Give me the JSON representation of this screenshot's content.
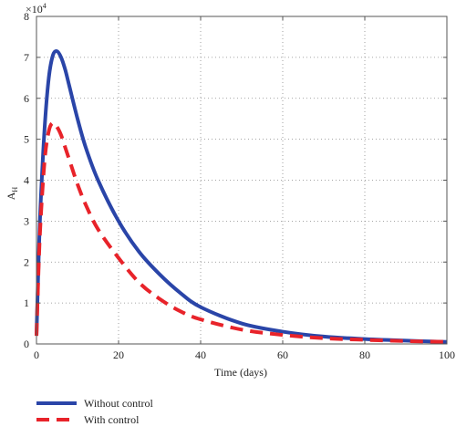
{
  "chart_data": {
    "type": "line",
    "title": "",
    "xlabel": "Time (days)",
    "ylabel": "A",
    "ylabel_subscript": "H",
    "y_scale_label": "×10",
    "y_scale_exponent": "4",
    "xlim": [
      0,
      100
    ],
    "ylim": [
      0,
      8
    ],
    "xticks": [
      0,
      20,
      40,
      60,
      80,
      100
    ],
    "yticks": [
      0,
      1,
      2,
      3,
      4,
      5,
      6,
      7,
      8
    ],
    "grid": true,
    "legend_position": "below-left",
    "series": [
      {
        "name": "Without control",
        "color": "#2a45a8",
        "style": "solid",
        "x": [
          0,
          0.5,
          1,
          2,
          3,
          4,
          5,
          6,
          7,
          8,
          10,
          12,
          15,
          20,
          25,
          30,
          35,
          40,
          50,
          60,
          70,
          80,
          90,
          100
        ],
        "y": [
          0.2,
          2.0,
          3.4,
          5.3,
          6.5,
          7.05,
          7.15,
          7.0,
          6.7,
          6.3,
          5.5,
          4.8,
          4.0,
          3.0,
          2.25,
          1.7,
          1.25,
          0.9,
          0.5,
          0.3,
          0.18,
          0.12,
          0.08,
          0.05
        ]
      },
      {
        "name": "With control",
        "color": "#e8232a",
        "style": "dashed",
        "x": [
          0,
          0.5,
          1,
          2,
          3,
          4,
          5,
          6,
          7,
          8,
          10,
          12,
          15,
          20,
          25,
          30,
          35,
          40,
          50,
          60,
          70,
          80,
          90,
          100
        ],
        "y": [
          0.2,
          1.8,
          3.0,
          4.5,
          5.2,
          5.4,
          5.3,
          5.1,
          4.8,
          4.5,
          3.9,
          3.4,
          2.8,
          2.1,
          1.5,
          1.1,
          0.8,
          0.6,
          0.35,
          0.22,
          0.14,
          0.1,
          0.07,
          0.05
        ]
      }
    ]
  }
}
